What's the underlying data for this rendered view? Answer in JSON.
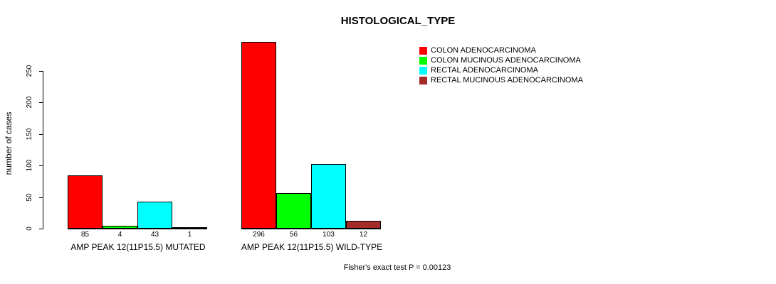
{
  "chart_data": {
    "type": "bar",
    "title": "HISTOLOGICAL_TYPE",
    "ylabel": "number of cases",
    "ylim": [
      0,
      250
    ],
    "yticks": [
      0,
      50,
      100,
      150,
      200,
      250
    ],
    "grid": false,
    "legend_position": "top-right",
    "series": [
      {
        "name": "COLON ADENOCARCINOMA",
        "color": "#ff0000"
      },
      {
        "name": "COLON MUCINOUS ADENOCARCINOMA",
        "color": "#00ff00"
      },
      {
        "name": "RECTAL ADENOCARCINOMA",
        "color": "#00ffff"
      },
      {
        "name": "RECTAL MUCINOUS ADENOCARCINOMA",
        "color": "#a52a2a"
      }
    ],
    "groups": [
      {
        "label": "AMP PEAK 12(11P15.5) MUTATED",
        "values": [
          85,
          4,
          43,
          1
        ]
      },
      {
        "label": "AMP PEAK 12(11P15.5) WILD-TYPE",
        "values": [
          296,
          56,
          103,
          12
        ]
      }
    ],
    "footnote": "Fisher's exact test P = 0.00123",
    "axis_color": "#000000",
    "background": "#ffffff"
  }
}
